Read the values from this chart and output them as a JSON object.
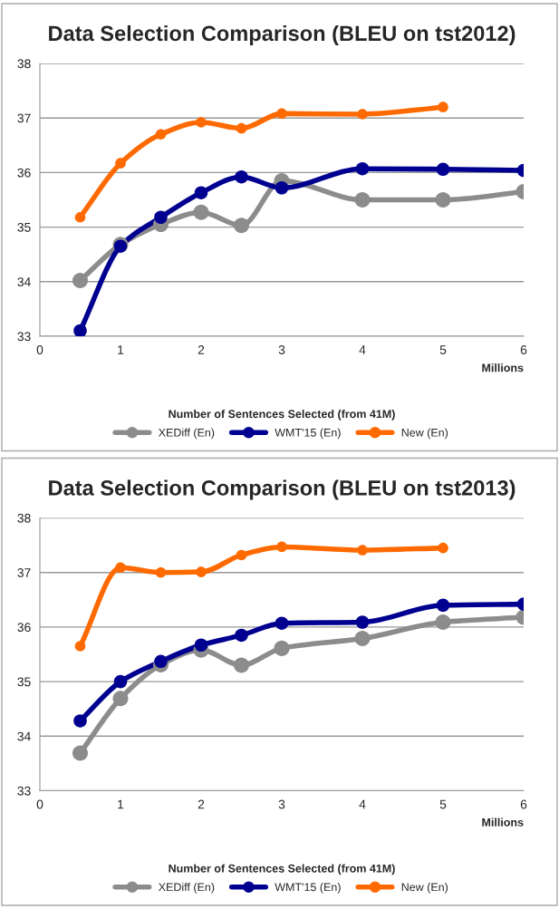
{
  "chart_data": [
    {
      "type": "line",
      "title": "Data Selection Comparison (BLEU on tst2012)",
      "xlabel": "Number of Sentences Selected (from 41M)",
      "annotations": [
        "Millions"
      ],
      "x": [
        0.5,
        1,
        1.5,
        2,
        2.5,
        3,
        4,
        5,
        6
      ],
      "series": [
        {
          "name": "XEDiff (En)",
          "color": "#8c8c8c",
          "values": [
            34.02,
            34.68,
            35.05,
            35.27,
            35.03,
            35.85,
            35.5,
            35.5,
            35.65
          ]
        },
        {
          "name": "WMT'15 (En)",
          "color": "#000090",
          "values": [
            33.1,
            34.65,
            35.18,
            35.63,
            35.92,
            35.72,
            36.07,
            36.06,
            36.04
          ]
        },
        {
          "name": "New (En)",
          "color": "#ff6a00",
          "values": [
            35.18,
            36.17,
            36.7,
            36.92,
            36.81,
            37.08,
            37.07,
            37.2,
            null
          ]
        }
      ],
      "xlim": [
        0,
        6
      ],
      "xticks": [
        0,
        1,
        2,
        3,
        4,
        5,
        6
      ],
      "ylim": [
        33,
        38
      ],
      "yticks": [
        33,
        34,
        35,
        36,
        37,
        38
      ],
      "grid": "y",
      "legend": "bottom",
      "marker": "circle",
      "line_style": "solid"
    },
    {
      "type": "line",
      "title": "Data Selection Comparison (BLEU on tst2013)",
      "xlabel": "Number of Sentences Selected (from 41M)",
      "annotations": [
        "Millions"
      ],
      "x": [
        0.5,
        1,
        1.5,
        2,
        2.5,
        3,
        4,
        5,
        6
      ],
      "series": [
        {
          "name": "XEDiff (En)",
          "color": "#8c8c8c",
          "values": [
            33.69,
            34.69,
            35.31,
            35.58,
            35.3,
            35.61,
            35.79,
            36.09,
            36.18
          ]
        },
        {
          "name": "WMT'15 (En)",
          "color": "#000090",
          "values": [
            34.28,
            35.0,
            35.37,
            35.67,
            35.85,
            36.07,
            36.09,
            36.4,
            36.42
          ]
        },
        {
          "name": "New (En)",
          "color": "#ff6a00",
          "values": [
            35.65,
            37.09,
            37.0,
            37.01,
            37.32,
            37.47,
            37.41,
            37.45,
            null
          ]
        }
      ],
      "xlim": [
        0,
        6
      ],
      "xticks": [
        0,
        1,
        2,
        3,
        4,
        5,
        6
      ],
      "ylim": [
        33,
        38
      ],
      "yticks": [
        33,
        34,
        35,
        36,
        37,
        38
      ],
      "grid": "y",
      "legend": "bottom",
      "marker": "circle",
      "line_style": "solid"
    }
  ]
}
